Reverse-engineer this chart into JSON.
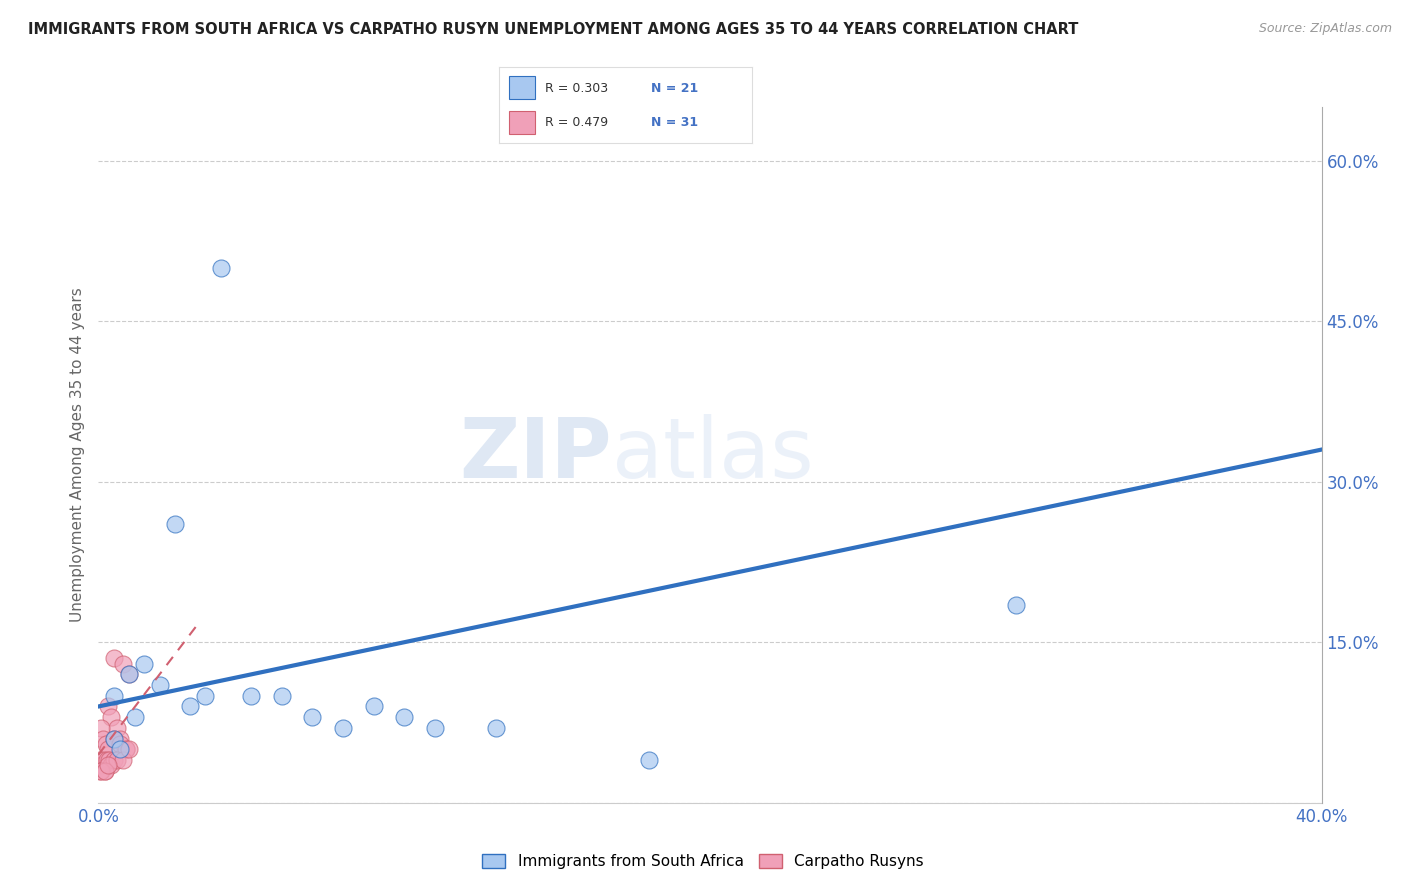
{
  "title": "IMMIGRANTS FROM SOUTH AFRICA VS CARPATHO RUSYN UNEMPLOYMENT AMONG AGES 35 TO 44 YEARS CORRELATION CHART",
  "source": "Source: ZipAtlas.com",
  "ylabel": "Unemployment Among Ages 35 to 44 years",
  "xlim": [
    0.0,
    0.4
  ],
  "ylim": [
    0.0,
    0.65
  ],
  "xticks": [
    0.0,
    0.1,
    0.2,
    0.3,
    0.4
  ],
  "xticklabels": [
    "0.0%",
    "",
    "",
    "",
    "40.0%"
  ],
  "yticks_right": [
    0.0,
    0.15,
    0.3,
    0.45,
    0.6
  ],
  "ytick_right_labels": [
    "",
    "15.0%",
    "30.0%",
    "45.0%",
    "60.0%"
  ],
  "blue_R": 0.303,
  "blue_N": 21,
  "pink_R": 0.479,
  "pink_N": 31,
  "blue_color": "#a8c8f0",
  "pink_color": "#f0a0b8",
  "blue_line_color": "#3070c0",
  "pink_line_color": "#d06070",
  "watermark_zip": "ZIP",
  "watermark_atlas": "atlas",
  "blue_scatter_x": [
    0.025,
    0.04,
    0.005,
    0.01,
    0.015,
    0.02,
    0.03,
    0.035,
    0.05,
    0.06,
    0.07,
    0.08,
    0.09,
    0.1,
    0.11,
    0.13,
    0.005,
    0.007,
    0.012,
    0.3,
    0.18
  ],
  "blue_scatter_y": [
    0.26,
    0.5,
    0.1,
    0.12,
    0.13,
    0.11,
    0.09,
    0.1,
    0.1,
    0.1,
    0.08,
    0.07,
    0.09,
    0.08,
    0.07,
    0.07,
    0.06,
    0.05,
    0.08,
    0.185,
    0.04
  ],
  "pink_scatter_x": [
    0.005,
    0.008,
    0.01,
    0.003,
    0.004,
    0.006,
    0.007,
    0.009,
    0.001,
    0.0015,
    0.0025,
    0.003,
    0.005,
    0.007,
    0.009,
    0.0005,
    0.0008,
    0.0012,
    0.0018,
    0.0022,
    0.0028,
    0.0035,
    0.004,
    0.005,
    0.006,
    0.008,
    0.01,
    0.0005,
    0.001,
    0.002,
    0.003
  ],
  "pink_scatter_y": [
    0.135,
    0.13,
    0.12,
    0.09,
    0.08,
    0.07,
    0.06,
    0.05,
    0.07,
    0.06,
    0.055,
    0.05,
    0.06,
    0.055,
    0.05,
    0.04,
    0.035,
    0.035,
    0.04,
    0.03,
    0.04,
    0.04,
    0.035,
    0.04,
    0.04,
    0.04,
    0.05,
    0.03,
    0.03,
    0.03,
    0.035
  ],
  "blue_trendline_x": [
    0.0,
    0.4
  ],
  "blue_trendline_y": [
    0.09,
    0.33
  ],
  "pink_trendline_x": [
    0.0,
    0.032
  ],
  "pink_trendline_y": [
    0.045,
    0.165
  ],
  "legend_label_blue": "Immigrants from South Africa",
  "legend_label_pink": "Carpatho Rusyns",
  "background_color": "#ffffff",
  "grid_color": "#cccccc"
}
